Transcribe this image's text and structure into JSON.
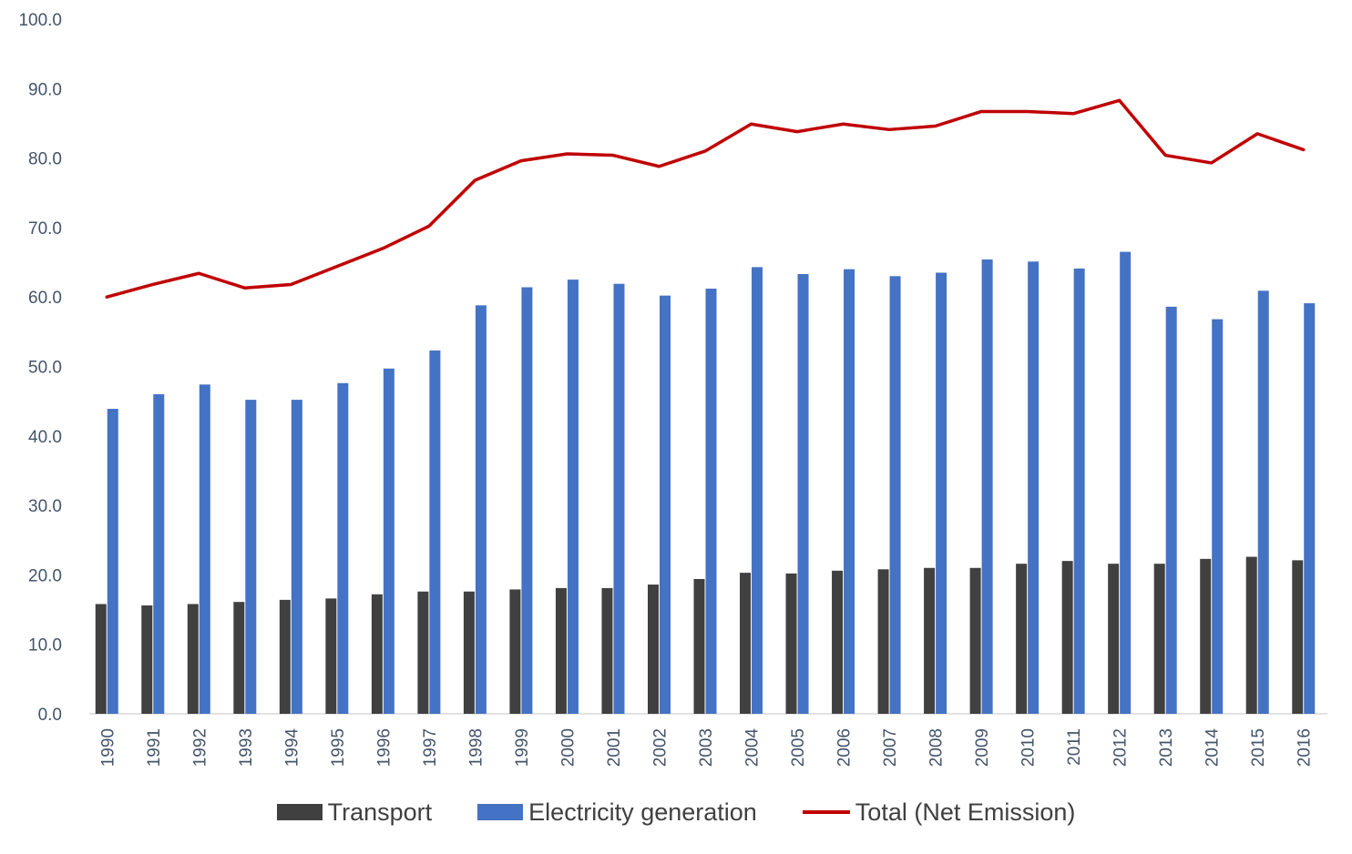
{
  "chart_data": {
    "type": "bar",
    "title": "",
    "xlabel": "",
    "ylabel": "",
    "ylim": [
      0,
      100
    ],
    "yticks": [
      "0.0",
      "10.0",
      "20.0",
      "30.0",
      "40.0",
      "50.0",
      "60.0",
      "70.0",
      "80.0",
      "90.0",
      "100.0"
    ],
    "categories": [
      "1990",
      "1991",
      "1992",
      "1993",
      "1994",
      "1995",
      "1996",
      "1997",
      "1998",
      "1999",
      "2000",
      "2001",
      "2002",
      "2003",
      "2004",
      "2005",
      "2006",
      "2007",
      "2008",
      "2009",
      "2010",
      "2011",
      "2012",
      "2013",
      "2014",
      "2015",
      "2016"
    ],
    "series": [
      {
        "name": "Transport",
        "kind": "bar",
        "color": "#404040",
        "values": [
          15.8,
          15.6,
          15.8,
          16.1,
          16.4,
          16.6,
          17.2,
          17.6,
          17.6,
          17.9,
          18.1,
          18.1,
          18.6,
          19.4,
          20.3,
          20.2,
          20.6,
          20.8,
          21.0,
          21.0,
          21.6,
          22.0,
          21.6,
          21.6,
          22.3,
          22.6,
          22.1
        ]
      },
      {
        "name": "Electricity generation",
        "kind": "bar",
        "color": "#4472c4",
        "values": [
          43.9,
          46.0,
          47.4,
          45.2,
          45.2,
          47.6,
          49.7,
          52.3,
          58.8,
          61.4,
          62.5,
          61.9,
          60.2,
          61.2,
          64.3,
          63.3,
          64.0,
          63.0,
          63.5,
          65.4,
          65.1,
          64.1,
          66.5,
          58.6,
          56.8,
          60.9,
          59.1
        ]
      },
      {
        "name": "Total (Net Emission)",
        "kind": "line",
        "color": "#c00000",
        "values": [
          60.0,
          61.8,
          63.4,
          61.3,
          61.8,
          64.4,
          67.0,
          70.2,
          76.8,
          79.6,
          80.6,
          80.4,
          78.8,
          81.0,
          84.9,
          83.8,
          84.9,
          84.1,
          84.6,
          86.7,
          86.7,
          86.4,
          88.3,
          80.4,
          79.3,
          83.5,
          81.2
        ]
      }
    ],
    "grid": false,
    "legend_position": "bottom"
  }
}
